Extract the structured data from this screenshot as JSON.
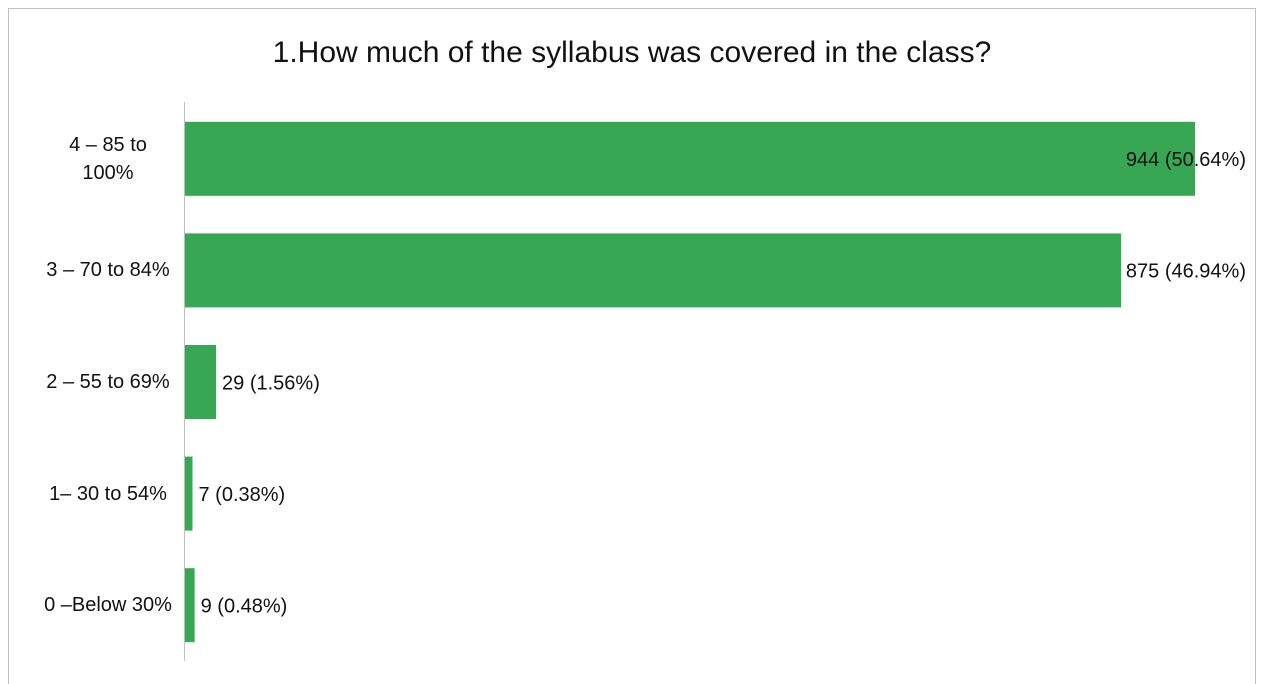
{
  "chart_data": {
    "type": "bar",
    "orientation": "horizontal",
    "title": "1.How much of the syllabus was covered in the class?",
    "categories": [
      "4 – 85 to 100%",
      "3 – 70 to 84%",
      "2 – 55 to 69%",
      "1– 30 to 54%",
      "0 –Below 30%"
    ],
    "values": [
      944,
      875,
      29,
      7,
      9
    ],
    "value_labels": [
      "944 (50.64%)",
      "875 (46.94%)",
      "29 (1.56%)",
      "7 (0.38%)",
      "9 (0.48%)"
    ],
    "color": "#37a753"
  }
}
